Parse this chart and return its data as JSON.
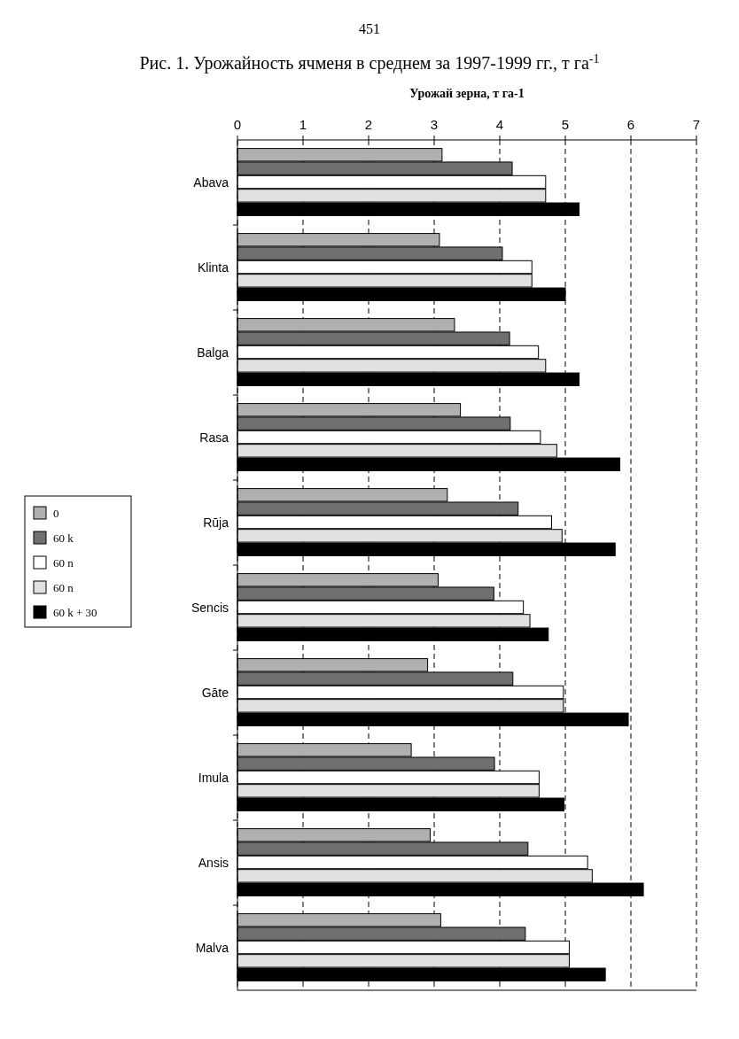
{
  "chart_data": {
    "type": "bar",
    "orientation": "horizontal",
    "title": "Рис. 1. Урожайность ячменя в среднем за 1997-1999 гг., т га$^{-1}$",
    "xlabel": "Урожай зерна, т га-1",
    "annotations": [
      "451"
    ],
    "categories": [
      "Abava",
      "Klinta",
      "Balga",
      "Rasa",
      "Rūja",
      "Sencis",
      "Gāte",
      "Imula",
      "Ansis",
      "Malva"
    ],
    "series": [
      {
        "name": "0",
        "color": "#b0b0b0",
        "values": [
          3.12,
          3.08,
          3.31,
          3.4,
          3.2,
          3.06,
          2.9,
          2.65,
          2.94,
          3.1
        ]
      },
      {
        "name": "60 k",
        "color": "#707070",
        "values": [
          4.19,
          4.04,
          4.15,
          4.16,
          4.28,
          3.91,
          4.2,
          3.92,
          4.43,
          4.39
        ]
      },
      {
        "name": "60 n",
        "color": "#ffffff",
        "values": [
          4.7,
          4.49,
          4.59,
          4.62,
          4.79,
          4.36,
          4.97,
          4.6,
          5.34,
          5.06
        ]
      },
      {
        "name": "60 n",
        "color": "#e0e0e0",
        "values": [
          4.7,
          4.49,
          4.7,
          4.87,
          4.95,
          4.46,
          4.97,
          4.6,
          5.41,
          5.06
        ]
      },
      {
        "name": "60 k + 30",
        "color": "#000000",
        "values": [
          5.21,
          5.0,
          5.21,
          5.83,
          5.76,
          4.74,
          5.96,
          4.98,
          6.19,
          5.61
        ]
      }
    ],
    "xlim": [
      0,
      7
    ],
    "xticks": [
      0,
      1,
      2,
      3,
      4,
      5,
      6,
      7
    ],
    "grid": "x",
    "legend": "left"
  }
}
